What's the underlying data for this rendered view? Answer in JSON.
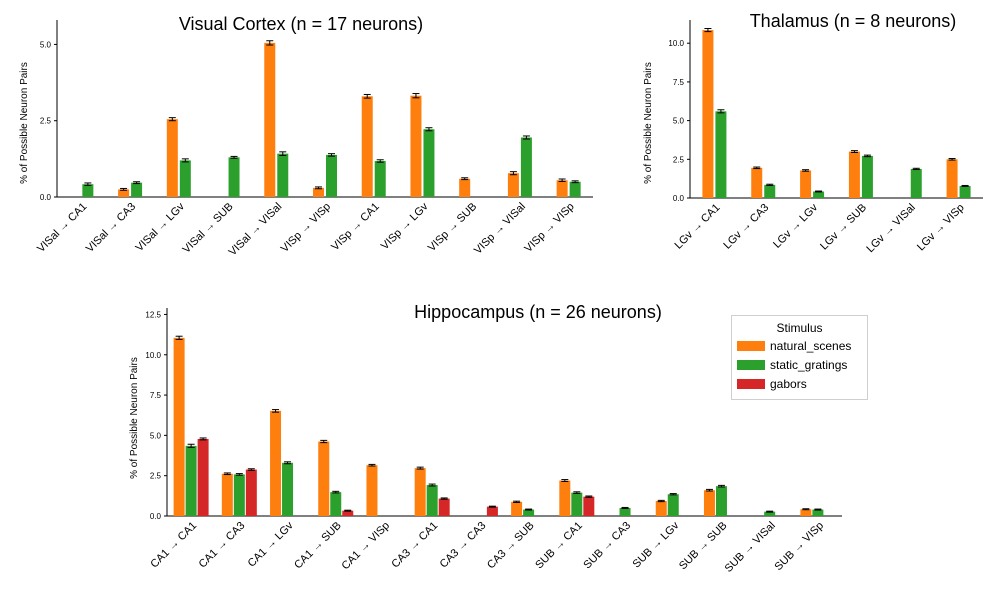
{
  "colors": {
    "natural_scenes": "#ff7f0e",
    "static_gratings": "#2ca02c",
    "gabors": "#d62728"
  },
  "legend": {
    "title": "Stimulus",
    "entries": [
      "natural_scenes",
      "static_gratings",
      "gabors"
    ]
  },
  "chart_data": [
    {
      "id": "visual",
      "type": "bar",
      "title": "Visual Cortex (n = 17 neurons)",
      "ylabel": "% of Possible Neuron Pairs",
      "xlabel": "",
      "ylim": [
        0,
        5.8
      ],
      "yticks": [
        "0.0",
        "2.5",
        "5.0"
      ],
      "categories": [
        "VISal → CA1",
        "VISal → CA3",
        "VISal → LGv",
        "VISal → SUB",
        "VISal → VISal",
        "VISp → VISp",
        "VISp → CA1",
        "VISp → LGv",
        "VISp → SUB",
        "VISp → VISal",
        "VISp → VISp"
      ],
      "series": [
        {
          "name": "natural_scenes",
          "values": [
            null,
            0.25,
            2.55,
            null,
            5.05,
            0.3,
            3.3,
            3.32,
            0.6,
            0.78,
            0.55
          ],
          "errors": [
            0,
            0.03,
            0.05,
            0,
            0.07,
            0.03,
            0.06,
            0.07,
            0.03,
            0.05,
            0.04
          ]
        },
        {
          "name": "static_gratings",
          "values": [
            0.42,
            0.47,
            1.2,
            1.3,
            1.42,
            1.38,
            1.18,
            2.22,
            null,
            1.95,
            0.5
          ],
          "errors": [
            0.04,
            0.03,
            0.05,
            0.03,
            0.06,
            0.04,
            0.04,
            0.05,
            0,
            0.05,
            0.03
          ]
        }
      ]
    },
    {
      "id": "thalamus",
      "type": "bar",
      "title": "Thalamus (n = 8 neurons)",
      "ylabel": "% of Possible Neuron Pairs",
      "xlabel": "",
      "ylim": [
        0,
        11.5
      ],
      "yticks": [
        "0.0",
        "2.5",
        "5.0",
        "7.5",
        "10.0"
      ],
      "categories": [
        "LGv → CA1",
        "LGv → CA3",
        "LGv → LGv",
        "LGv → SUB",
        "LGv → VISal",
        "LGv → VISp"
      ],
      "series": [
        {
          "name": "natural_scenes",
          "values": [
            10.85,
            1.95,
            1.78,
            3.0,
            null,
            2.5
          ],
          "errors": [
            0.1,
            0.05,
            0.05,
            0.06,
            0,
            0.05
          ]
        },
        {
          "name": "static_gratings",
          "values": [
            5.6,
            0.85,
            0.42,
            2.72,
            1.88,
            0.78
          ],
          "errors": [
            0.1,
            0.04,
            0.03,
            0.05,
            0.04,
            0.03
          ]
        }
      ]
    },
    {
      "id": "hippocampus",
      "type": "bar",
      "title": "Hippocampus (n = 26 neurons)",
      "ylabel": "% of Possible Neuron Pairs",
      "xlabel": "",
      "ylim": [
        0,
        12.9
      ],
      "yticks": [
        "0.0",
        "2.5",
        "5.0",
        "7.5",
        "10.0",
        "12.5"
      ],
      "categories": [
        "CA1 → CA1",
        "CA1 → CA3",
        "CA1 → LGv",
        "CA1 → SUB",
        "CA1 → VISp",
        "CA3 → CA1",
        "CA3 → CA3",
        "CA3 → SUB",
        "SUB → CA1",
        "SUB → CA3",
        "SUB → LGv",
        "SUB → SUB",
        "SUB → VISal",
        "SUB → VISp"
      ],
      "series": [
        {
          "name": "natural_scenes",
          "values": [
            11.05,
            2.62,
            6.52,
            4.62,
            3.15,
            2.97,
            null,
            0.88,
            2.2,
            null,
            0.93,
            1.6,
            null,
            0.42
          ],
          "errors": [
            0.1,
            0.05,
            0.08,
            0.07,
            0.05,
            0.06,
            0,
            0.04,
            0.06,
            0,
            0.04,
            0.05,
            0,
            0.03
          ]
        },
        {
          "name": "static_gratings",
          "values": [
            4.35,
            2.58,
            3.3,
            1.48,
            null,
            1.92,
            null,
            0.4,
            1.45,
            0.5,
            1.35,
            1.85,
            0.27,
            0.4
          ],
          "errors": [
            0.1,
            0.05,
            0.06,
            0.05,
            0,
            0.06,
            0,
            0.03,
            0.05,
            0.03,
            0.04,
            0.05,
            0.03,
            0.03
          ]
        },
        {
          "name": "gabors",
          "values": [
            4.78,
            2.88,
            null,
            0.33,
            null,
            1.08,
            0.58,
            null,
            1.2,
            null,
            null,
            null,
            null,
            null
          ],
          "errors": [
            0.06,
            0.05,
            0,
            0.03,
            0,
            0.04,
            0.03,
            0,
            0.04,
            0,
            0,
            0,
            0,
            0
          ]
        }
      ]
    }
  ]
}
